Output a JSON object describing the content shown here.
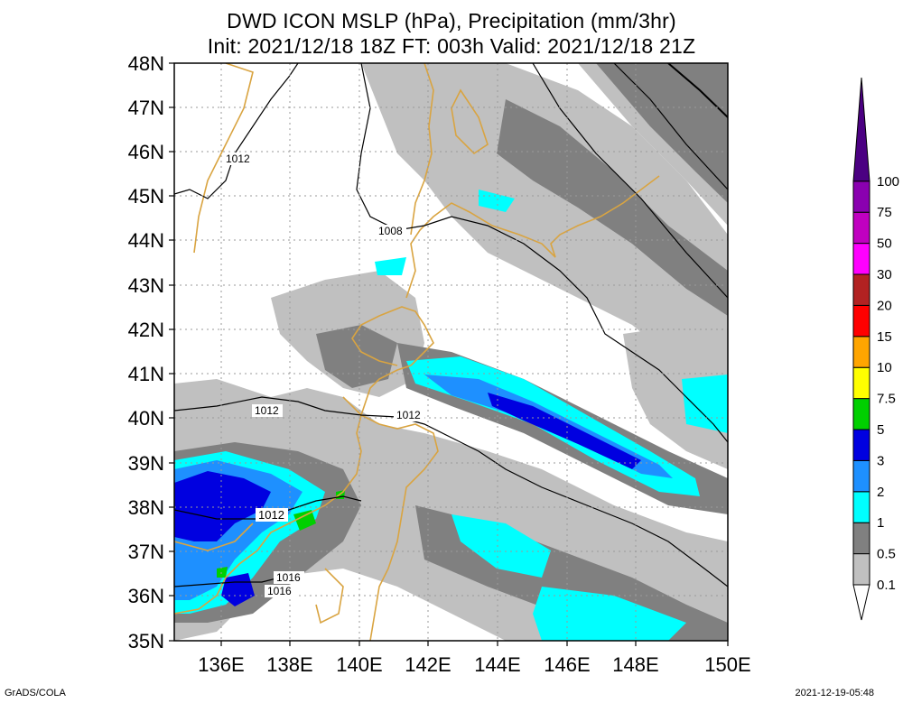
{
  "title": {
    "line1": "DWD ICON MSLP (hPa), Precipitation (mm/3hr)",
    "line2": "Init: 2021/12/18 18Z  FT: 003h  Valid: 2021/12/18 21Z"
  },
  "map": {
    "lat_labels": [
      "48N",
      "47N",
      "46N",
      "45N",
      "44N",
      "43N",
      "42N",
      "41N",
      "40N",
      "39N",
      "38N",
      "37N",
      "36N",
      "35N"
    ],
    "lon_labels": [
      "136E",
      "138E",
      "140E",
      "142E",
      "144E",
      "146E",
      "148E",
      "150E"
    ],
    "isobar_labels": [
      "1012",
      "1008",
      "1012",
      "1012",
      "1012",
      "1016",
      "1016"
    ],
    "colors": {
      "coast": "#d9a441",
      "isobar": "#000000",
      "grid": "#9a9a9a"
    }
  },
  "colorbar": {
    "levels": [
      "0.1",
      "0.5",
      "1",
      "2",
      "3",
      "5",
      "7.5",
      "10",
      "15",
      "20",
      "30",
      "50",
      "75",
      "100"
    ],
    "colors": [
      "#ffffff",
      "#c0c0c0",
      "#808080",
      "#00ffff",
      "#1e90ff",
      "#0000e0",
      "#00d000",
      "#ffff00",
      "#ffa500",
      "#ff0000",
      "#b22222",
      "#ff00ff",
      "#c000c0",
      "#8a00b0",
      "#4b0082"
    ]
  },
  "footer": {
    "left": "GrADS/COLA",
    "right": "2021-12-19-05:48"
  }
}
